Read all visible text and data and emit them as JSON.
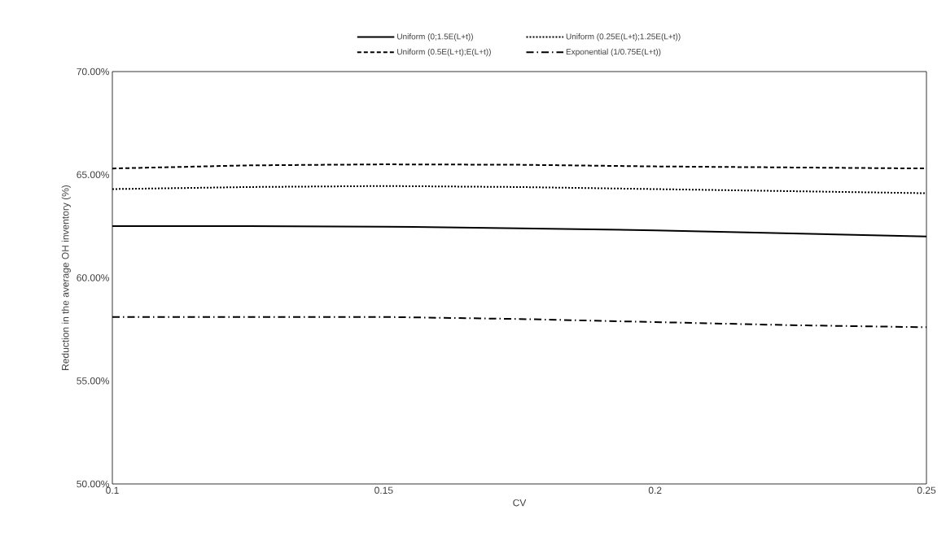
{
  "chart_data": {
    "type": "line",
    "xlabel": "CV",
    "ylabel": "Reduction in the average OH inventory (%)",
    "x": [
      0.1,
      0.125,
      0.15,
      0.175,
      0.2,
      0.225,
      0.25
    ],
    "xlim": [
      0.1,
      0.25
    ],
    "xticks": [
      0.1,
      0.15,
      0.2,
      0.25
    ],
    "ylim": [
      50,
      70
    ],
    "yticks": [
      {
        "value": 50,
        "label": "50.00%"
      },
      {
        "value": 55,
        "label": "55.00%"
      },
      {
        "value": 60,
        "label": "60.00%"
      },
      {
        "value": 65,
        "label": "65.00%"
      },
      {
        "value": 70,
        "label": "70.00%"
      }
    ],
    "grid": false,
    "legend": "top",
    "marker": "none",
    "series": [
      {
        "name": "Uniform (0;1.5E(L+t))",
        "color": "#000000",
        "line_style": "solid",
        "values": [
          62.5,
          62.5,
          62.48,
          62.4,
          62.3,
          62.15,
          62.0
        ]
      },
      {
        "name": "Uniform (0.25E(L+t);1.25E(L+t))",
        "color": "#000000",
        "line_style": "dotted",
        "values": [
          64.3,
          64.4,
          64.45,
          64.4,
          64.3,
          64.2,
          64.1
        ]
      },
      {
        "name": "Uniform (0.5E(L+t);E(L+t))",
        "color": "#000000",
        "line_style": "dashed",
        "values": [
          65.3,
          65.45,
          65.5,
          65.48,
          65.4,
          65.35,
          65.3
        ]
      },
      {
        "name": "Exponential (1/0.75E(L+t))",
        "color": "#000000",
        "line_style": "dashdot",
        "values": [
          58.1,
          58.1,
          58.1,
          58.0,
          57.85,
          57.7,
          57.6
        ]
      }
    ]
  }
}
